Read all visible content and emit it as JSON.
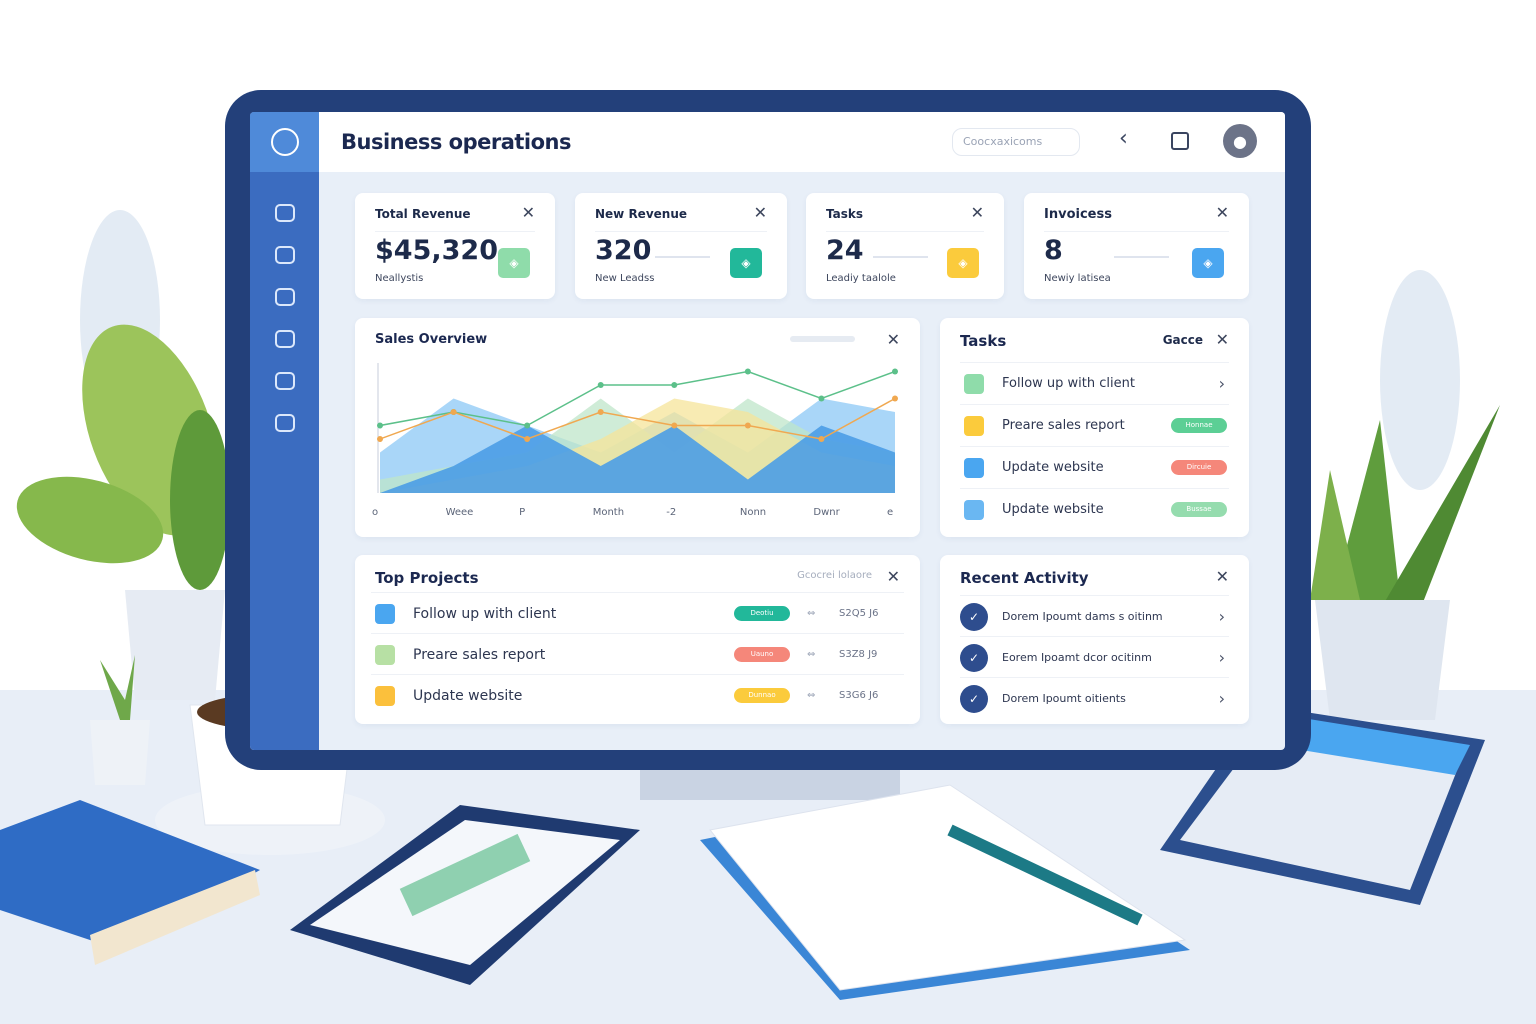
{
  "app": {
    "title": "Business operations",
    "search_placeholder": "Coocxaxicoms"
  },
  "icons": {
    "logo": "clock-logo-icon",
    "sidebar": [
      "chart-icon",
      "inbox-icon",
      "folder-icon",
      "mail-icon",
      "chat-icon",
      "calendar-icon"
    ],
    "header": [
      "back-chevron-icon",
      "square-icon",
      "user-avatar-icon"
    ]
  },
  "stats": [
    {
      "label": "Total Revenue",
      "value": "$45,320",
      "sub": "Neallystis",
      "badge_color": "#8fdcaa"
    },
    {
      "label": "New Revenue",
      "value": "320",
      "sub": "New Leadss",
      "badge_color": "#22b89a"
    },
    {
      "label": "Tasks",
      "value": "24",
      "sub": "Leadiy taalole",
      "badge_color": "#fbcb3c"
    },
    {
      "label": "Invoicess",
      "value": "8",
      "sub": "Newiy latisea",
      "badge_color": "#4aa6f0"
    }
  ],
  "sales": {
    "title": "Sales Overview"
  },
  "chart_data": {
    "type": "area",
    "title": "Sales Overview",
    "x_ticks": [
      "o",
      "Weee",
      "P",
      "Month",
      "-2",
      "Nonn",
      "Dwnr",
      "e"
    ],
    "series": [
      {
        "color": "#8cc8f5",
        "values": [
          3,
          7,
          5,
          3,
          6,
          3,
          7,
          6
        ]
      },
      {
        "color": "#bfe6c9",
        "values": [
          1,
          2,
          3,
          7,
          3,
          7,
          4,
          3
        ]
      },
      {
        "color": "#f6e49a",
        "values": [
          0,
          1,
          2,
          4,
          7,
          6,
          3,
          2
        ]
      },
      {
        "color": "#4b9de6",
        "values": [
          0,
          2,
          5,
          2,
          5,
          1,
          5,
          3
        ]
      }
    ],
    "lines": [
      {
        "color": "#5cc08a",
        "values": [
          5,
          6,
          5,
          8,
          8,
          9,
          7,
          9
        ]
      },
      {
        "color": "#f0a850",
        "values": [
          4,
          6,
          4,
          6,
          5,
          5,
          4,
          7
        ]
      }
    ],
    "grid": false
  },
  "tasks": {
    "title": "Tasks",
    "action": "Gacce",
    "items": [
      {
        "label": "Follow up with client",
        "color": "#8fdcaa",
        "pill": "",
        "pill_color": ""
      },
      {
        "label": "Preare sales report",
        "color": "#fbcb3c",
        "pill": "Honnae",
        "pill_color": "#5ccf95"
      },
      {
        "label": "Update website",
        "color": "#4aa6f0",
        "pill": "Dircuie",
        "pill_color": "#f5877a"
      },
      {
        "label": "Update website",
        "color": "#6ab7f2",
        "pill": "Bussae",
        "pill_color": "#95dcae"
      }
    ]
  },
  "projects": {
    "title": "Top Projects",
    "action": "Gcocrei lolaore",
    "items": [
      {
        "label": "Follow up with client",
        "color": "#4aa6f0",
        "pill": "Deotiu",
        "pill_color": "#22b89a",
        "amount": "S2Q5 J6"
      },
      {
        "label": "Preare sales report",
        "color": "#b7e0a4",
        "pill": "Uauno",
        "pill_color": "#f5877a",
        "amount": "S3Z8 J9"
      },
      {
        "label": "Update website",
        "color": "#fbc03c",
        "pill": "Dunnao",
        "pill_color": "#fbcb3c",
        "amount": "S3G6 J6"
      }
    ]
  },
  "activity": {
    "title": "Recent Activity",
    "items": [
      {
        "label": "Dorem Ipoumt dams s oitinm"
      },
      {
        "label": "Eorem Ipoamt dcor ocitinm"
      },
      {
        "label": "Dorem Ipoumt oitients"
      }
    ]
  }
}
